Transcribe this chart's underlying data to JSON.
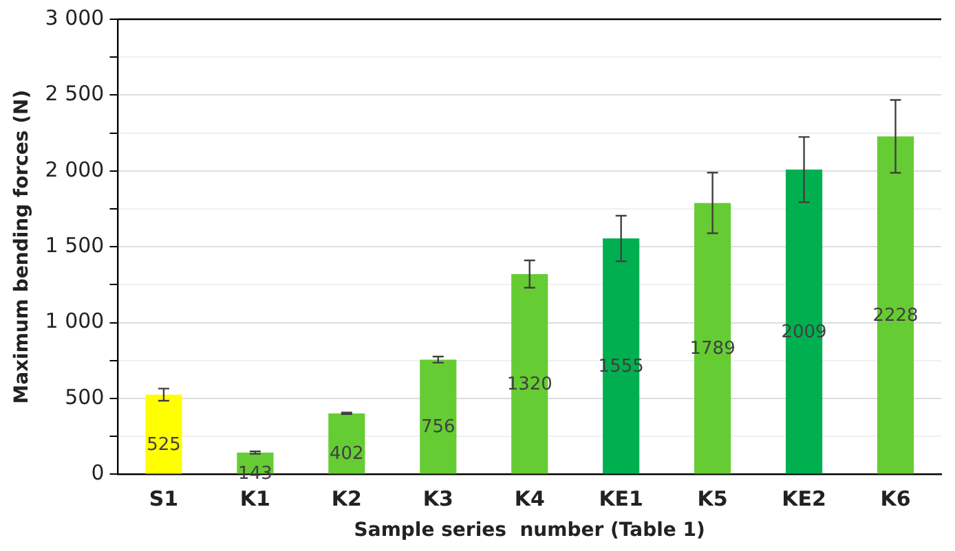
{
  "chart_data": {
    "type": "bar",
    "xlabel": "Sample series  number (Table 1)",
    "ylabel": "Maximum bending forces (N)",
    "categories": [
      "S1",
      "K1",
      "K2",
      "K3",
      "K4",
      "KE1",
      "K5",
      "KE2",
      "K6"
    ],
    "values": [
      525,
      143,
      402,
      756,
      1320,
      1555,
      1789,
      2009,
      2228
    ],
    "colors": [
      "#ffff00",
      "#66cc33",
      "#66cc33",
      "#66cc33",
      "#66cc33",
      "#00b050",
      "#66cc33",
      "#00b050",
      "#66cc33"
    ],
    "errors": [
      40,
      8,
      5,
      20,
      90,
      150,
      200,
      215,
      240
    ],
    "data_labels": true,
    "ylim": [
      0,
      3000
    ],
    "yticks": [
      0,
      {
        "value": 250,
        "label": null
      },
      {
        "value": 500,
        "label": "500"
      },
      {
        "value": 750,
        "label": null
      },
      {
        "value": 1000,
        "label": "1 000"
      },
      {
        "value": 1250,
        "label": null
      },
      {
        "value": 1500,
        "label": "1 500"
      },
      {
        "value": 1750,
        "label": null
      },
      {
        "value": 2000,
        "label": "2 000"
      },
      {
        "value": 2250,
        "label": null
      },
      {
        "value": 2500,
        "label": "2 500"
      },
      {
        "value": 2750,
        "label": null
      },
      {
        "value": 3000,
        "label": "3 000"
      }
    ],
    "grid": "y",
    "legend": false
  }
}
